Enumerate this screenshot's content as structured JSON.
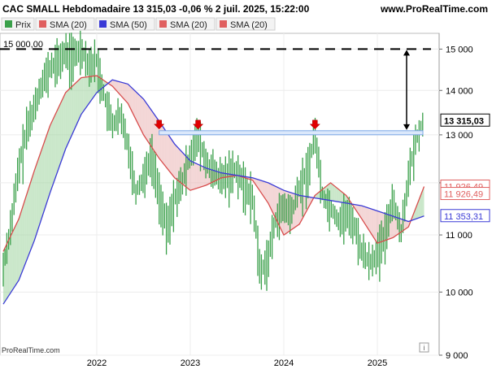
{
  "header": {
    "title": "CAC SMALL Hebdomadaire 13 315,03 -0,06 % 2 juil. 2025, 15:22:00",
    "site": "www.ProRealTime.com"
  },
  "legend": [
    {
      "label": "Prix",
      "color": "#3aa04a"
    },
    {
      "label": "SMA (20)",
      "color": "#e06060"
    },
    {
      "label": "SMA (50)",
      "color": "#3a3ad6"
    },
    {
      "label": "SMA (20)",
      "color": "#e06060"
    },
    {
      "label": "SMA (20)",
      "color": "#e06060"
    }
  ],
  "level_label": "15 000,00",
  "watermark": "ProRealTime.com",
  "info_icon": "info-icon",
  "chart_data": {
    "type": "line",
    "x_ticks": [
      "2022",
      "2023",
      "2024",
      "2025"
    ],
    "y_ticks": [
      "9 000",
      "10 000",
      "11 000",
      "12 000",
      "13 000",
      "14 000",
      "15 000"
    ],
    "ylim": [
      9000,
      15400
    ],
    "y_scale": "log",
    "resistance_level": 15000,
    "zone": [
      13010,
      13090
    ],
    "arrows_dates": [
      "2022-09",
      "2023-02",
      "2024-05"
    ],
    "value_badges": [
      {
        "label": "13 315,03",
        "value": 13315,
        "color": "#000000",
        "bg": "#ffffff",
        "bold": true
      },
      {
        "label": "11 926,49",
        "value": 11926,
        "color": "#e06060",
        "bg": "#ffffff",
        "bold": false
      },
      {
        "label": "11 926,49",
        "value": 11780,
        "color": "#e06060",
        "bg": "#ffffff",
        "bold": false
      },
      {
        "label": "11 353,31",
        "value": 11353,
        "color": "#3a3ad6",
        "bg": "#ffffff",
        "bold": false
      }
    ],
    "series": [
      {
        "name": "Prix",
        "color": "#3aa04a",
        "points": [
          [
            "2021-01",
            10400
          ],
          [
            "2021-02",
            11200
          ],
          [
            "2021-03",
            12300
          ],
          [
            "2021-04",
            13100
          ],
          [
            "2021-05",
            13600
          ],
          [
            "2021-06",
            14200
          ],
          [
            "2021-07",
            14500
          ],
          [
            "2021-08",
            14700
          ],
          [
            "2021-09",
            14900
          ],
          [
            "2021-10",
            14800
          ],
          [
            "2021-11",
            15000
          ],
          [
            "2021-12",
            14600
          ],
          [
            "2022-01",
            14700
          ],
          [
            "2022-02",
            13800
          ],
          [
            "2022-03",
            13200
          ],
          [
            "2022-04",
            13400
          ],
          [
            "2022-05",
            12800
          ],
          [
            "2022-06",
            11800
          ],
          [
            "2022-07",
            12100
          ],
          [
            "2022-08",
            12600
          ],
          [
            "2022-09",
            11800
          ],
          [
            "2022-10",
            11100
          ],
          [
            "2022-11",
            11700
          ],
          [
            "2022-12",
            12000
          ],
          [
            "2023-01",
            12600
          ],
          [
            "2023-02",
            12950
          ],
          [
            "2023-03",
            12400
          ],
          [
            "2023-04",
            12200
          ],
          [
            "2023-05",
            12050
          ],
          [
            "2023-06",
            12200
          ],
          [
            "2023-07",
            12250
          ],
          [
            "2023-08",
            11900
          ],
          [
            "2023-09",
            11700
          ],
          [
            "2023-10",
            10300
          ],
          [
            "2023-11",
            10600
          ],
          [
            "2023-12",
            11300
          ],
          [
            "2024-01",
            11500
          ],
          [
            "2024-02",
            11400
          ],
          [
            "2024-03",
            11900
          ],
          [
            "2024-04",
            12200
          ],
          [
            "2024-05",
            13000
          ],
          [
            "2024-06",
            11700
          ],
          [
            "2024-07",
            11500
          ],
          [
            "2024-08",
            11250
          ],
          [
            "2024-09",
            11400
          ],
          [
            "2024-10",
            11200
          ],
          [
            "2024-11",
            10700
          ],
          [
            "2024-12",
            10500
          ],
          [
            "2025-01",
            10650
          ],
          [
            "2025-02",
            11000
          ],
          [
            "2025-03",
            11700
          ],
          [
            "2025-04",
            11000
          ],
          [
            "2025-05",
            12100
          ],
          [
            "2025-06",
            12900
          ],
          [
            "2025-07",
            13315
          ]
        ]
      },
      {
        "name": "SMA (20)",
        "color": "#d84c4c",
        "points": [
          [
            "2021-01",
            10700
          ],
          [
            "2021-03",
            11300
          ],
          [
            "2021-05",
            12250
          ],
          [
            "2021-07",
            13200
          ],
          [
            "2021-09",
            13950
          ],
          [
            "2021-11",
            14300
          ],
          [
            "2022-01",
            14350
          ],
          [
            "2022-03",
            14100
          ],
          [
            "2022-05",
            13700
          ],
          [
            "2022-07",
            13000
          ],
          [
            "2022-09",
            12500
          ],
          [
            "2022-11",
            12100
          ],
          [
            "2023-01",
            11850
          ],
          [
            "2023-03",
            11950
          ],
          [
            "2023-05",
            12100
          ],
          [
            "2023-07",
            12150
          ],
          [
            "2023-09",
            12050
          ],
          [
            "2023-11",
            11600
          ],
          [
            "2024-01",
            11000
          ],
          [
            "2024-03",
            11200
          ],
          [
            "2024-05",
            11750
          ],
          [
            "2024-07",
            12000
          ],
          [
            "2024-09",
            11750
          ],
          [
            "2024-11",
            11300
          ],
          [
            "2025-01",
            10850
          ],
          [
            "2025-03",
            10950
          ],
          [
            "2025-05",
            11150
          ],
          [
            "2025-07",
            11926
          ]
        ]
      },
      {
        "name": "SMA (50)",
        "color": "#3a3ad6",
        "points": [
          [
            "2021-01",
            9800
          ],
          [
            "2021-03",
            10200
          ],
          [
            "2021-05",
            10900
          ],
          [
            "2021-07",
            11800
          ],
          [
            "2021-09",
            12700
          ],
          [
            "2021-11",
            13450
          ],
          [
            "2022-01",
            13950
          ],
          [
            "2022-03",
            14250
          ],
          [
            "2022-05",
            14150
          ],
          [
            "2022-07",
            13800
          ],
          [
            "2022-09",
            13300
          ],
          [
            "2022-11",
            12800
          ],
          [
            "2023-01",
            12450
          ],
          [
            "2023-03",
            12300
          ],
          [
            "2023-05",
            12200
          ],
          [
            "2023-07",
            12150
          ],
          [
            "2023-09",
            12100
          ],
          [
            "2023-11",
            12000
          ],
          [
            "2024-01",
            11850
          ],
          [
            "2024-03",
            11750
          ],
          [
            "2024-05",
            11700
          ],
          [
            "2024-07",
            11650
          ],
          [
            "2024-09",
            11600
          ],
          [
            "2024-11",
            11550
          ],
          [
            "2025-01",
            11450
          ],
          [
            "2025-03",
            11350
          ],
          [
            "2025-05",
            11250
          ],
          [
            "2025-07",
            11353
          ]
        ]
      }
    ]
  }
}
